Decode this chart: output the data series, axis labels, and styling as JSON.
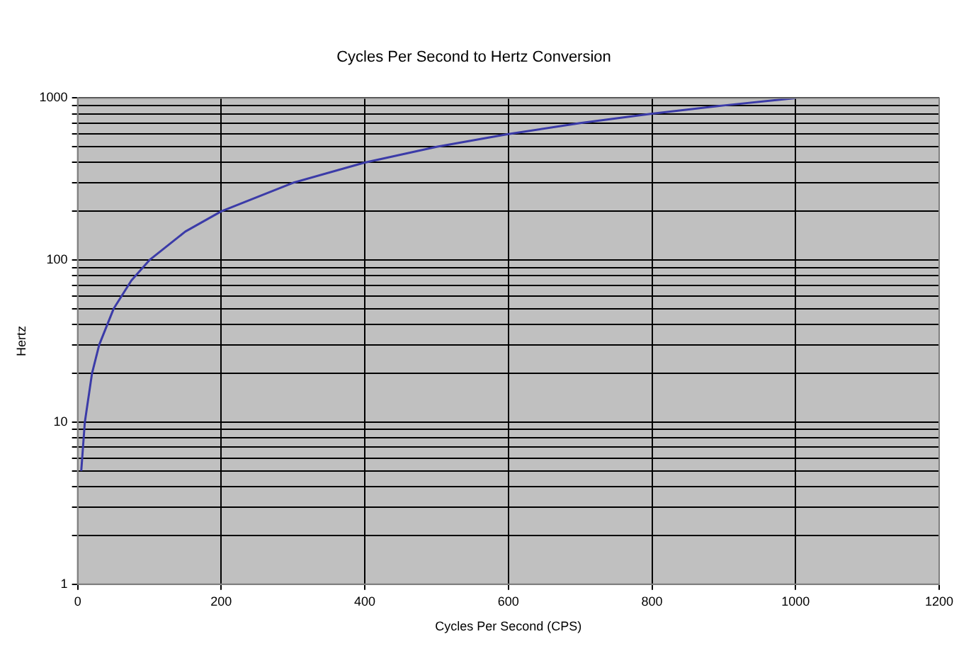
{
  "chart_data": {
    "type": "line",
    "title": "Cycles Per Second to Hertz Conversion",
    "xlabel": "Cycles Per Second (CPS)",
    "ylabel": "Hertz",
    "x": [
      5,
      10,
      20,
      30,
      50,
      75,
      100,
      150,
      200,
      300,
      400,
      500,
      600,
      700,
      800,
      900,
      1000
    ],
    "series": [
      {
        "color": "#3b3ba8",
        "values": [
          5,
          10,
          20,
          30,
          50,
          75,
          100,
          150,
          200,
          300,
          400,
          500,
          600,
          700,
          800,
          900,
          1000
        ]
      }
    ],
    "xlim": [
      0,
      1200
    ],
    "xticks": [
      0,
      200,
      400,
      600,
      800,
      1000,
      1200
    ],
    "ylim": [
      1,
      1000
    ],
    "yticks": [
      1,
      {
        "value": 2,
        "label": null
      },
      {
        "value": 3,
        "label": null
      },
      {
        "value": 4,
        "label": null
      },
      {
        "value": 5,
        "label": null
      },
      {
        "value": 6,
        "label": null
      },
      {
        "value": 7,
        "label": null
      },
      {
        "value": 8,
        "label": null
      },
      {
        "value": 9,
        "label": null
      },
      10,
      {
        "value": 20,
        "label": null
      },
      {
        "value": 30,
        "label": null
      },
      {
        "value": 40,
        "label": null
      },
      {
        "value": 50,
        "label": null
      },
      {
        "value": 60,
        "label": null
      },
      {
        "value": 70,
        "label": null
      },
      {
        "value": 80,
        "label": null
      },
      {
        "value": 90,
        "label": null
      },
      100,
      {
        "value": 200,
        "label": null
      },
      {
        "value": 300,
        "label": null
      },
      {
        "value": 400,
        "label": null
      },
      {
        "value": 500,
        "label": null
      },
      {
        "value": 600,
        "label": null
      },
      {
        "value": 700,
        "label": null
      },
      {
        "value": 800,
        "label": null
      },
      {
        "value": 900,
        "label": null
      },
      1000
    ],
    "log": "y",
    "grid": true,
    "marker": "none",
    "line_style": "solid",
    "legend": false
  }
}
